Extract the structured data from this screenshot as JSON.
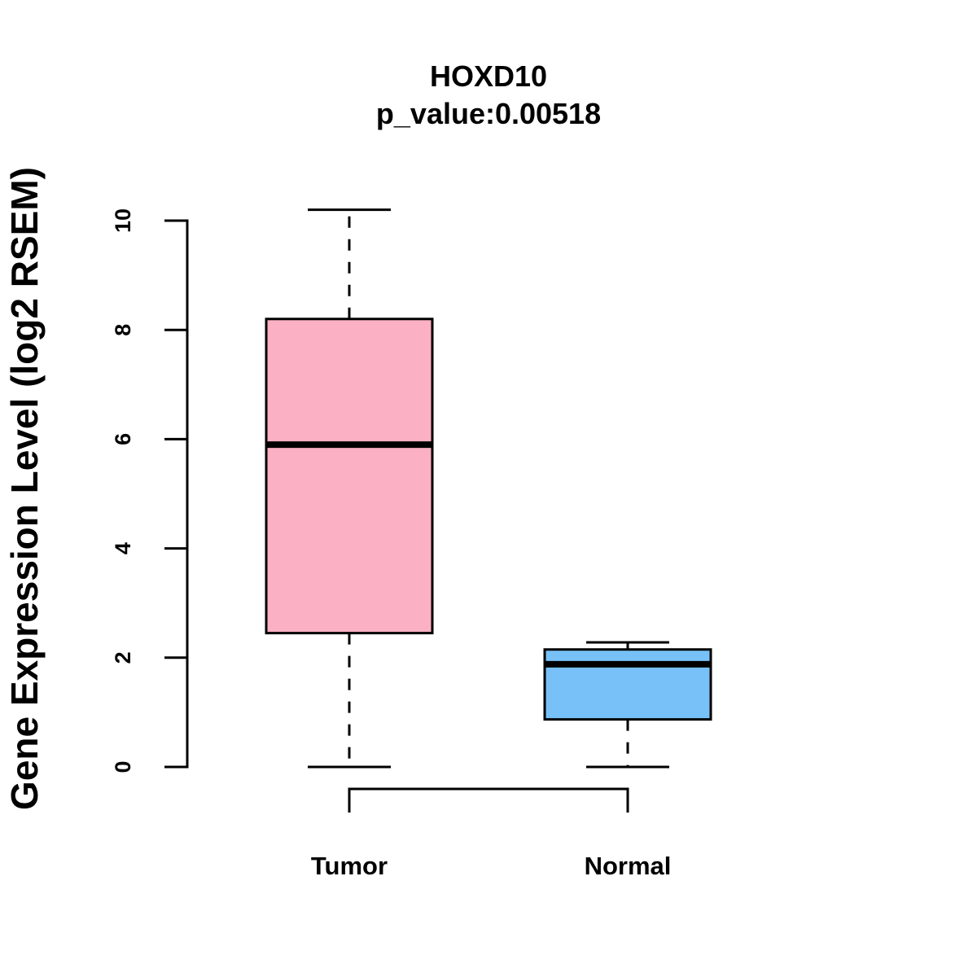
{
  "chart_data": {
    "type": "boxplot",
    "title": "HOXD10",
    "subtitle": "p_value:0.00518",
    "xlabel": "",
    "ylabel": "Gene Expression Level (log2 RSEM)",
    "ylim": [
      0,
      10
    ],
    "yticks": [
      0,
      2,
      4,
      6,
      8,
      10
    ],
    "yticklabels": [
      "0",
      "2",
      "4",
      "6",
      "8",
      "10"
    ],
    "grid": false,
    "categories": [
      "Tumor",
      "Normal"
    ],
    "series": [
      {
        "name": "Tumor",
        "color": "#FBB1C3",
        "whisker_low": 0,
        "q1": 2.45,
        "median": 5.9,
        "q3": 8.2,
        "whisker_high": 10.2
      },
      {
        "name": "Normal",
        "color": "#78C1F8",
        "whisker_low": 0,
        "q1": 0.87,
        "median": 1.88,
        "q3": 2.15,
        "whisker_high": 2.28
      }
    ],
    "comparison_bracket": {
      "between": [
        "Tumor",
        "Normal"
      ]
    }
  }
}
